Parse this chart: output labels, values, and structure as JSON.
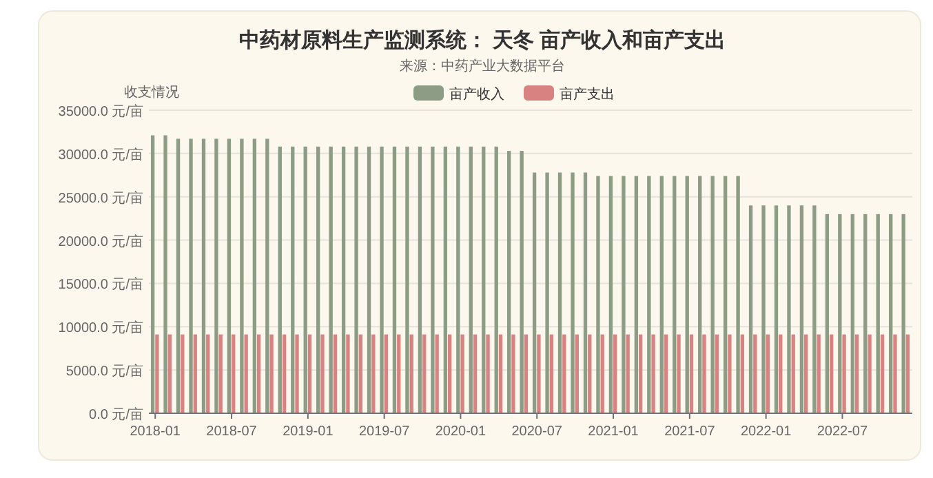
{
  "chart_data": {
    "type": "bar",
    "title": "中药材原料生产监测系统： 天冬 亩产收入和亩产支出",
    "subtitle": "来源：中药产业大数据平台",
    "ylabel": "收支情况",
    "categories": [
      "2018-01",
      null,
      null,
      null,
      null,
      null,
      "2018-07",
      null,
      null,
      null,
      null,
      null,
      "2019-01",
      null,
      null,
      null,
      null,
      null,
      "2019-07",
      null,
      null,
      null,
      null,
      null,
      "2020-01",
      null,
      null,
      null,
      null,
      null,
      "2020-07",
      null,
      null,
      null,
      null,
      null,
      "2021-01",
      null,
      null,
      null,
      null,
      null,
      "2021-07",
      null,
      null,
      null,
      null,
      null,
      "2022-01",
      null,
      null,
      null,
      null,
      null,
      "2022-07",
      null,
      null,
      null,
      null,
      null
    ],
    "series": [
      {
        "name": "亩产收入",
        "color": "#8c9c85",
        "values": [
          32100,
          32100,
          31700,
          31700,
          31700,
          31700,
          31700,
          31700,
          31700,
          31700,
          30800,
          30800,
          30800,
          30800,
          30800,
          30800,
          30800,
          30800,
          30800,
          30800,
          30800,
          30800,
          30800,
          30800,
          30800,
          30800,
          30800,
          30800,
          30300,
          30300,
          27800,
          27800,
          27800,
          27800,
          27800,
          27400,
          27400,
          27400,
          27400,
          27400,
          27400,
          27400,
          27400,
          27400,
          27400,
          27400,
          27400,
          24000,
          24000,
          24000,
          24000,
          24000,
          24000,
          23000,
          23000,
          23000,
          23000,
          23000,
          23000,
          23000
        ]
      },
      {
        "name": "亩产支出",
        "color": "#d98282",
        "values": [
          9100,
          9100,
          9100,
          9100,
          9100,
          9100,
          9100,
          9100,
          9100,
          9100,
          9100,
          9100,
          9100,
          9100,
          9100,
          9100,
          9100,
          9100,
          9100,
          9100,
          9100,
          9100,
          9100,
          9100,
          9100,
          9100,
          9100,
          9100,
          9100,
          9100,
          9100,
          9100,
          9100,
          9100,
          9100,
          9100,
          9100,
          9100,
          9100,
          9100,
          9100,
          9100,
          9100,
          9100,
          9100,
          9100,
          9100,
          9100,
          9100,
          9100,
          9100,
          9100,
          9100,
          9100,
          9100,
          9100,
          9100,
          9100,
          9100,
          9100
        ]
      }
    ],
    "ylim": [
      0,
      35000
    ],
    "yticks": [
      {
        "value": 0,
        "label": "0.0 元/亩"
      },
      {
        "value": 5000,
        "label": "5000.0 元/亩"
      },
      {
        "value": 10000,
        "label": "10000.0 元/亩"
      },
      {
        "value": 15000,
        "label": "15000.0 元/亩"
      },
      {
        "value": 20000,
        "label": "20000.0 元/亩"
      },
      {
        "value": 25000,
        "label": "25000.0 元/亩"
      },
      {
        "value": 30000,
        "label": "30000.0 元/亩"
      },
      {
        "value": 35000,
        "label": "35000.0 元/亩"
      }
    ],
    "grid": "y",
    "legend": "top"
  }
}
